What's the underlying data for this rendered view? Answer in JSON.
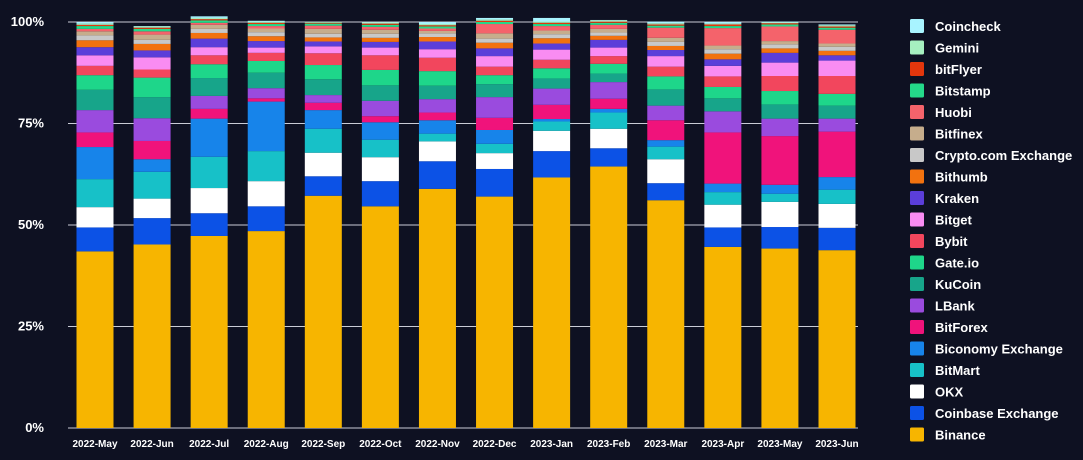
{
  "chart_data": {
    "type": "bar",
    "stacked": true,
    "categories": [
      "2022-May",
      "2022-Jun",
      "2022-Jul",
      "2022-Aug",
      "2022-Sep",
      "2022-Oct",
      "2022-Nov",
      "2022-Dec",
      "2023-Jan",
      "2023-Feb",
      "2023-Mar",
      "2023-Apr",
      "2023-May",
      "2023-Jun"
    ],
    "ylim": [
      0,
      100
    ],
    "yticks": [
      "0%",
      "25%",
      "50%",
      "75%",
      "100%"
    ],
    "grid": true,
    "legend_position": "right",
    "series": [
      {
        "name": "Binance",
        "color": "#f7b500",
        "values": [
          43.5,
          45.2,
          47.3,
          48.5,
          57.2,
          54.6,
          58.9,
          57.0,
          61.7,
          64.4,
          56.1,
          44.6,
          44.2,
          43.8
        ]
      },
      {
        "name": "Coinbase Exchange",
        "color": "#0c52e6",
        "values": [
          5.9,
          6.5,
          5.6,
          6.1,
          4.8,
          6.2,
          6.8,
          6.8,
          6.5,
          4.5,
          4.2,
          4.8,
          5.3,
          5.5
        ]
      },
      {
        "name": "OKX",
        "color": "#ffffff",
        "values": [
          5.0,
          4.8,
          6.2,
          6.2,
          5.8,
          5.9,
          4.9,
          3.9,
          5.0,
          4.8,
          5.9,
          5.6,
          6.2,
          5.9
        ]
      },
      {
        "name": "BitMart",
        "color": "#17c1c8",
        "values": [
          6.9,
          6.6,
          7.7,
          7.4,
          5.9,
          4.3,
          1.9,
          2.3,
          2.3,
          4.0,
          3.1,
          3.1,
          2.0,
          3.5
        ]
      },
      {
        "name": "Biconomy Exchange",
        "color": "#1784ea",
        "values": [
          7.9,
          3.1,
          9.4,
          12.2,
          4.6,
          4.3,
          3.3,
          3.4,
          0.6,
          0.9,
          1.6,
          2.1,
          2.2,
          3.1
        ]
      },
      {
        "name": "BitForex",
        "color": "#f0137b",
        "values": [
          3.6,
          4.5,
          2.4,
          0.8,
          1.8,
          1.5,
          1.9,
          3.0,
          3.5,
          2.5,
          4.9,
          12.6,
          12.0,
          11.2
        ]
      },
      {
        "name": "LBank",
        "color": "#9a4bde",
        "values": [
          5.5,
          5.6,
          3.2,
          2.5,
          1.9,
          3.8,
          3.3,
          5.1,
          4.0,
          4.1,
          3.6,
          5.2,
          4.3,
          3.2
        ]
      },
      {
        "name": "KuCoin",
        "color": "#17a58a",
        "values": [
          5.0,
          5.2,
          4.4,
          3.8,
          3.9,
          3.8,
          3.3,
          3.2,
          2.5,
          2.1,
          4.0,
          3.2,
          3.5,
          3.2
        ]
      },
      {
        "name": "Gate.io",
        "color": "#1ed68a",
        "values": [
          3.6,
          4.8,
          3.4,
          2.9,
          3.5,
          3.8,
          3.6,
          2.2,
          2.5,
          2.4,
          3.2,
          2.8,
          3.3,
          2.9
        ]
      },
      {
        "name": "Bybit",
        "color": "#f2465d",
        "values": [
          2.3,
          2.0,
          2.2,
          2.0,
          2.9,
          3.6,
          3.3,
          2.1,
          2.1,
          1.9,
          2.4,
          2.6,
          3.7,
          4.4
        ]
      },
      {
        "name": "Bitget",
        "color": "#f98cf2",
        "values": [
          2.6,
          3.0,
          2.0,
          1.3,
          1.7,
          1.9,
          2.1,
          2.6,
          2.5,
          2.1,
          2.6,
          2.6,
          3.3,
          3.8
        ]
      },
      {
        "name": "Kraken",
        "color": "#5b3ed9",
        "values": [
          2.0,
          1.7,
          2.1,
          1.6,
          1.2,
          1.4,
          1.9,
          1.9,
          1.5,
          1.9,
          1.5,
          1.6,
          2.4,
          1.3
        ]
      },
      {
        "name": "Bithumb",
        "color": "#f2720f",
        "values": [
          1.7,
          1.6,
          1.4,
          1.2,
          1.0,
          1.0,
          1.1,
          1.4,
          1.3,
          1.0,
          1.0,
          1.4,
          1.1,
          1.1
        ]
      },
      {
        "name": "Crypto.com Exchange",
        "color": "#c8c8c8",
        "values": [
          1.2,
          1.0,
          1.0,
          1.0,
          0.9,
          1.0,
          0.9,
          1.0,
          1.0,
          0.8,
          1.0,
          1.1,
          1.0,
          1.0
        ]
      },
      {
        "name": "Bitfinex",
        "color": "#c6ad8c",
        "values": [
          1.0,
          1.3,
          1.0,
          0.9,
          1.2,
          1.0,
          0.6,
          1.3,
          0.9,
          0.9,
          1.0,
          0.9,
          0.8,
          0.8
        ]
      },
      {
        "name": "Huobi",
        "color": "#f4636b",
        "values": [
          0.6,
          0.8,
          0.5,
          0.6,
          0.8,
          0.7,
          0.6,
          2.3,
          1.1,
          1.0,
          2.5,
          4.3,
          3.6,
          3.4
        ]
      },
      {
        "name": "Bitstamp",
        "color": "#24d98a",
        "values": [
          0.7,
          0.6,
          0.6,
          0.5,
          0.5,
          0.5,
          0.5,
          0.5,
          0.5,
          0.5,
          0.5,
          0.5,
          0.5,
          0.5
        ]
      },
      {
        "name": "bitFlyer",
        "color": "#e3360c",
        "values": [
          0.3,
          0.3,
          0.3,
          0.3,
          0.2,
          0.3,
          0.3,
          0.3,
          0.3,
          0.3,
          0.3,
          0.4,
          0.3,
          0.3
        ]
      },
      {
        "name": "Gemini",
        "color": "#a6f0c0",
        "values": [
          0.3,
          0.3,
          0.3,
          0.3,
          0.2,
          0.3,
          0.3,
          0.3,
          0.3,
          0.3,
          0.3,
          0.2,
          0.2,
          0.3
        ]
      },
      {
        "name": "Coincheck",
        "color": "#a8f4ff",
        "values": [
          0.4,
          0.1,
          0.4,
          0.2,
          0.0,
          0.1,
          0.5,
          0.4,
          0.9,
          0.1,
          0.4,
          0.4,
          0.2,
          0.2
        ]
      }
    ]
  }
}
